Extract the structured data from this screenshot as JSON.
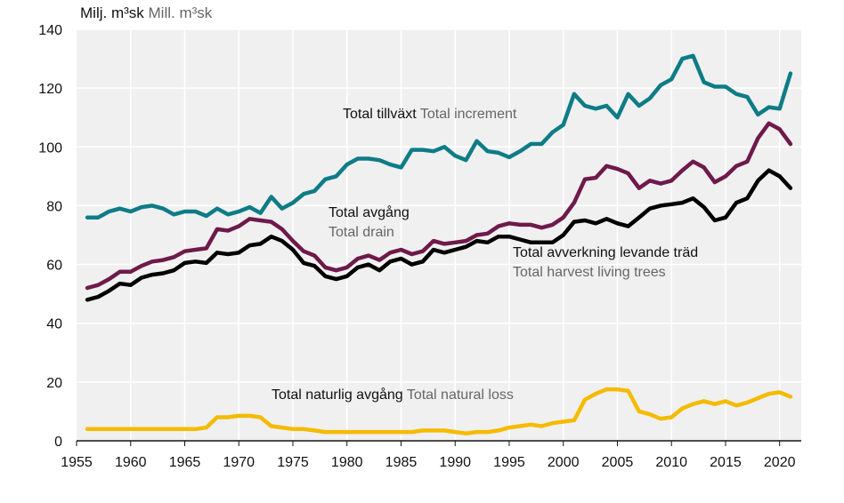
{
  "chart_data": {
    "type": "line",
    "unit_label": {
      "sv": "Milj. m³sk",
      "en": "Mill. m³sk"
    },
    "ylim": [
      0,
      140
    ],
    "xlim": [
      1955,
      2022
    ],
    "yticks": [
      "0",
      "20",
      "40",
      "60",
      "80",
      "100",
      "120",
      "140"
    ],
    "xticks": [
      "1955",
      "1960",
      "1965",
      "1970",
      "1975",
      "1980",
      "1985",
      "1990",
      "1995",
      "2000",
      "2005",
      "2010",
      "2015",
      "2020"
    ],
    "grid": true,
    "x": [
      1956,
      1957,
      1958,
      1959,
      1960,
      1961,
      1962,
      1963,
      1964,
      1965,
      1966,
      1967,
      1968,
      1969,
      1970,
      1971,
      1972,
      1973,
      1974,
      1975,
      1976,
      1977,
      1978,
      1979,
      1980,
      1981,
      1982,
      1983,
      1984,
      1985,
      1986,
      1987,
      1988,
      1989,
      1990,
      1991,
      1992,
      1993,
      1994,
      1995,
      1996,
      1997,
      1998,
      1999,
      2000,
      2001,
      2002,
      2003,
      2004,
      2005,
      2006,
      2007,
      2008,
      2009,
      2010,
      2011,
      2012,
      2013,
      2014,
      2015,
      2016,
      2017,
      2018,
      2019,
      2020,
      2021
    ],
    "series": [
      {
        "key": "increment",
        "name_sv": "Total tillväxt",
        "name_en": "Total increment",
        "color": "#0e7c86",
        "values": [
          76,
          76,
          78,
          79,
          78,
          79.5,
          80,
          79,
          77,
          78,
          78,
          76.5,
          79,
          77,
          78,
          79.5,
          77.5,
          83,
          79,
          81,
          84,
          85,
          89,
          90,
          94,
          96,
          96,
          95.5,
          94,
          93,
          99,
          99,
          98.5,
          100,
          97,
          95.5,
          102,
          98.5,
          98,
          96.5,
          98.5,
          101,
          101,
          105,
          107.5,
          118,
          114,
          113,
          114,
          110,
          118,
          114,
          116.5,
          121,
          123,
          130,
          131,
          122,
          120.5,
          120.5,
          118,
          117,
          111,
          113.5,
          113,
          125
        ]
      },
      {
        "key": "drain",
        "name_sv": "Total avgång",
        "name_en": "Total drain",
        "color": "#6e1a4a",
        "values": [
          52,
          53,
          55,
          57.5,
          57.5,
          59.5,
          61,
          61.5,
          62.5,
          64.5,
          65,
          65.5,
          72,
          71.5,
          73,
          75.5,
          75,
          74.5,
          72,
          68,
          64.5,
          63,
          59,
          58,
          59,
          62,
          63,
          61.5,
          64,
          65,
          63.5,
          64.5,
          68,
          67,
          67.5,
          68,
          70,
          70.5,
          73,
          74,
          73.5,
          73.5,
          72.5,
          73.5,
          76,
          81,
          89,
          89.5,
          93.5,
          92.5,
          91,
          86,
          88.5,
          87.5,
          88.5,
          92,
          95,
          93,
          88,
          90,
          93.5,
          95,
          103,
          108,
          106,
          101
        ]
      },
      {
        "key": "harvest",
        "name_sv": "Total avverkning levande träd",
        "name_en": "Total harvest living trees",
        "color": "#000000",
        "values": [
          48,
          49,
          51,
          53.5,
          53,
          55.5,
          56.5,
          57,
          58,
          60.5,
          61,
          60.5,
          64,
          63.5,
          64,
          66.5,
          67,
          69.5,
          68,
          65,
          60.5,
          59.5,
          56,
          55,
          56,
          59,
          60,
          58,
          61,
          62,
          60,
          61,
          65,
          64,
          65,
          66,
          68,
          67.5,
          69.5,
          69.5,
          68.5,
          67.5,
          67.5,
          67.5,
          70,
          74.5,
          75,
          74,
          75.5,
          74,
          73,
          76,
          79,
          80,
          80.5,
          81,
          82.5,
          79.5,
          75,
          76,
          81,
          82.5,
          88.5,
          92,
          90,
          86
        ]
      },
      {
        "key": "natural_loss",
        "name_sv": "Total naturlig avgång",
        "name_en": "Total natural loss",
        "color": "#f5bb00",
        "values": [
          4,
          4,
          4,
          4,
          4,
          4,
          4,
          4,
          4,
          4,
          4,
          4.5,
          8,
          8,
          8.5,
          8.5,
          8,
          5,
          4.5,
          4,
          4,
          3.5,
          3,
          3,
          3,
          3,
          3,
          3,
          3,
          3,
          3,
          3.5,
          3.5,
          3.5,
          3,
          2.5,
          3,
          3,
          3.5,
          4.5,
          5,
          5.5,
          5,
          6,
          6.5,
          7,
          14,
          16,
          17.5,
          17.5,
          17,
          10,
          9,
          7.5,
          8,
          11,
          12.5,
          13.5,
          12.5,
          13.5,
          12,
          13,
          14.5,
          16,
          16.5,
          15
        ]
      }
    ]
  }
}
